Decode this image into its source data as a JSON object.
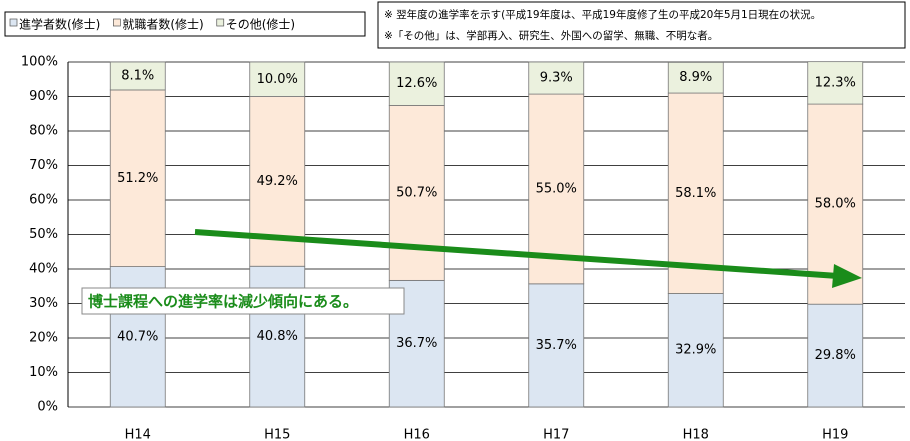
{
  "chart_data": {
    "type": "stacked_bar",
    "categories": [
      "H14",
      "H15",
      "H16",
      "H17",
      "H18",
      "H19"
    ],
    "series": [
      {
        "name": "進学者数(修士)",
        "color": "#dce6f2",
        "values": [
          40.7,
          40.8,
          36.7,
          35.7,
          32.9,
          29.8
        ],
        "value_labels": [
          "40.7%",
          "40.8%",
          "36.7%",
          "35.7%",
          "32.9%",
          "29.8%"
        ]
      },
      {
        "name": "就職者数(修士)",
        "color": "#fde9d9",
        "values": [
          51.2,
          49.2,
          50.7,
          55.0,
          58.1,
          58.0
        ],
        "value_labels": [
          "51.2%",
          "49.2%",
          "50.7%",
          "55.0%",
          "58.1%",
          "58.0%"
        ]
      },
      {
        "name": "その他(修士)",
        "color": "#ebf1de",
        "values": [
          8.1,
          10.0,
          12.6,
          9.3,
          8.9,
          12.3
        ],
        "value_labels": [
          "8.1%",
          "10.0%",
          "12.6%",
          "9.3%",
          "8.9%",
          "12.3%"
        ]
      }
    ],
    "ylim": [
      0,
      100
    ],
    "yticks": [
      {
        "value": 0,
        "label": "0%"
      },
      {
        "value": 10,
        "label": "10%"
      },
      {
        "value": 20,
        "label": "20%"
      },
      {
        "value": 30,
        "label": "30%"
      },
      {
        "value": 40,
        "label": "40%"
      },
      {
        "value": 50,
        "label": "50%"
      },
      {
        "value": 60,
        "label": "60%"
      },
      {
        "value": 70,
        "label": "70%"
      },
      {
        "value": 80,
        "label": "80%"
      },
      {
        "value": 90,
        "label": "90%"
      },
      {
        "value": 100,
        "label": "100%"
      }
    ],
    "grid": true,
    "notes": [
      "※ 翌年度の進学率を示す(平成19年度は、平成19年度修了生の平成20年5月1日現在の状況。",
      "※「その他」は、学部再入、研究生、外国への留学、無職、不明な者。"
    ],
    "annotation": "博士課程への進学率は減少傾向にある。"
  }
}
